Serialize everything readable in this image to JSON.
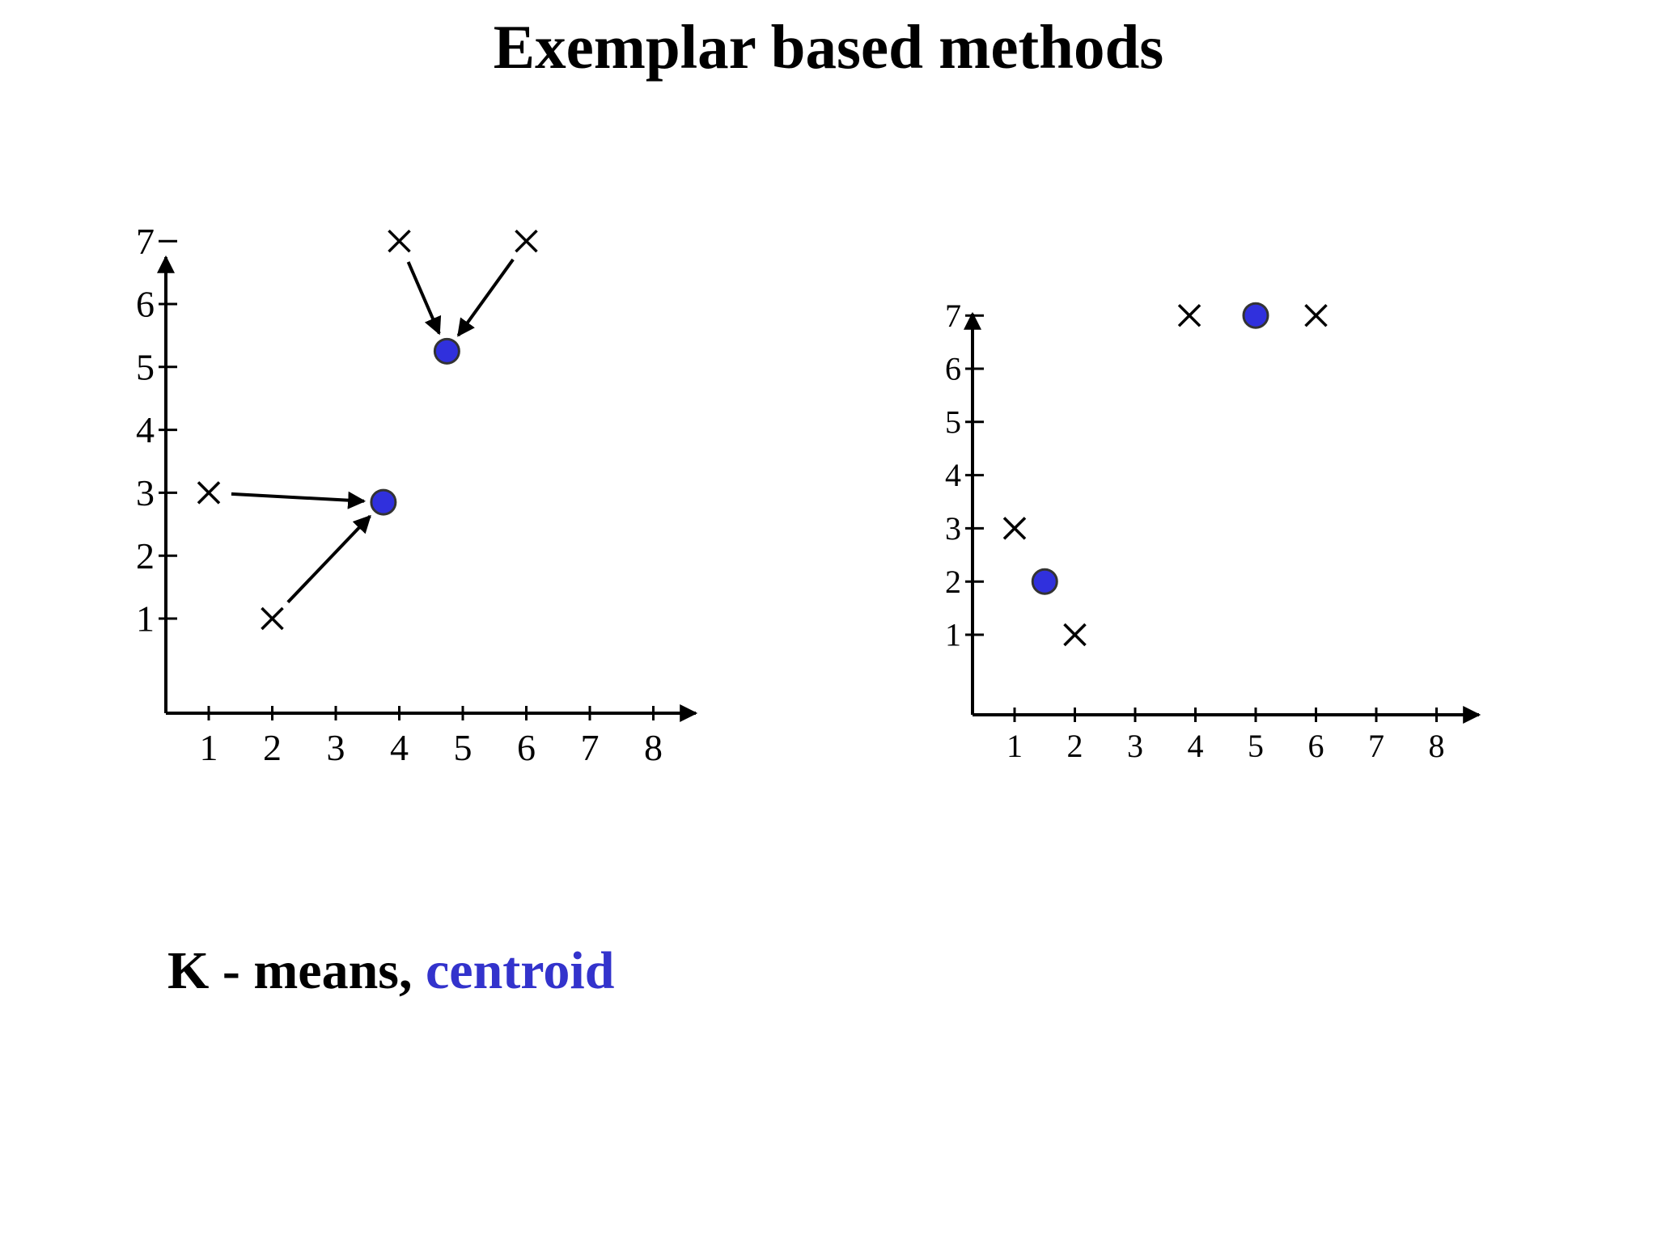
{
  "title": "Exemplar based methods",
  "caption": {
    "prefix": "K - means,",
    "accent": "centroid",
    "accent_color": "#3333cc"
  },
  "chart_data": [
    {
      "type": "scatter",
      "title": "",
      "xlabel": "",
      "ylabel": "",
      "x_ticks": [
        "1",
        "2",
        "3",
        "4",
        "5",
        "6",
        "7",
        "8"
      ],
      "y_ticks": [
        "1",
        "2",
        "3",
        "4",
        "5",
        "6",
        "7"
      ],
      "xlim": [
        0,
        8.6
      ],
      "ylim": [
        0,
        7.3
      ],
      "series": [
        {
          "marker": "x",
          "color": "#000000",
          "points": [
            [
              1,
              3
            ],
            [
              2,
              1
            ],
            [
              4,
              7
            ],
            [
              6,
              7
            ]
          ]
        },
        {
          "marker": "dot",
          "color": "#3030dd",
          "points": [
            [
              3.75,
              2.85
            ],
            [
              4.75,
              5.25
            ]
          ]
        }
      ],
      "arrows": [
        {
          "from": [
            1,
            3
          ],
          "to": [
            3.75,
            2.85
          ]
        },
        {
          "from": [
            2,
            1
          ],
          "to": [
            3.75,
            2.85
          ]
        },
        {
          "from": [
            4,
            7
          ],
          "to": [
            4.75,
            5.25
          ]
        },
        {
          "from": [
            6,
            7
          ],
          "to": [
            4.75,
            5.25
          ]
        }
      ],
      "grid": false
    },
    {
      "type": "scatter",
      "title": "",
      "xlabel": "",
      "ylabel": "",
      "x_ticks": [
        "1",
        "2",
        "3",
        "4",
        "5",
        "6",
        "7",
        "8"
      ],
      "y_ticks": [
        "1",
        "2",
        "3",
        "4",
        "5",
        "6",
        "7"
      ],
      "xlim": [
        0,
        8.6
      ],
      "ylim": [
        0,
        7.3
      ],
      "series": [
        {
          "marker": "x",
          "color": "#000000",
          "points": [
            [
              1,
              3
            ],
            [
              2,
              1
            ],
            [
              3.9,
              7
            ],
            [
              6,
              7
            ]
          ]
        },
        {
          "marker": "dot",
          "color": "#3030dd",
          "points": [
            [
              1.5,
              2
            ],
            [
              5,
              7
            ]
          ]
        }
      ],
      "arrows": [],
      "grid": false
    }
  ]
}
